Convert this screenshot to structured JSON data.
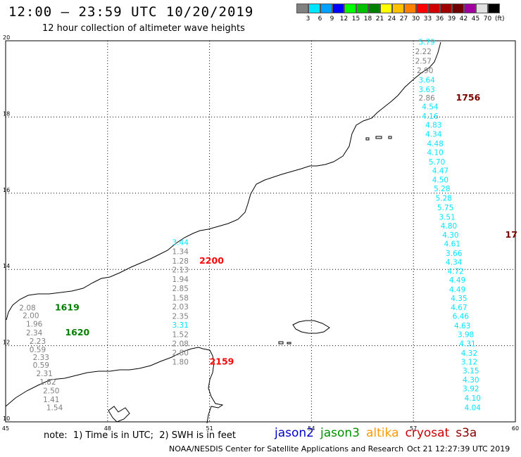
{
  "header": {
    "title": "12:00 – 23:59 UTC 10/20/2019",
    "subtitle": "12 hour collection of altimeter wave heights"
  },
  "legend": {
    "colors": [
      "#808080",
      "#00e5ff",
      "#00a0ff",
      "#0000ff",
      "#00ff00",
      "#00c000",
      "#008000",
      "#ffff00",
      "#ffc000",
      "#ff8000",
      "#ff0000",
      "#d00000",
      "#a00000",
      "#700000",
      "#a000a0",
      "#e0e0e0",
      "#000000"
    ],
    "labels": [
      "3",
      "6",
      "9",
      "12",
      "15",
      "18",
      "21",
      "24",
      "27",
      "30",
      "33",
      "36",
      "39",
      "42",
      "45",
      "70"
    ],
    "unit": "(ft)"
  },
  "axes": {
    "x_ticks": [
      "45",
      "48",
      "51",
      "54",
      "57",
      "60"
    ],
    "y_ticks": [
      "20",
      "18",
      "16",
      "14",
      "12",
      "10"
    ]
  },
  "tracks": [
    {
      "pass": "1756",
      "color": "#00e5ff",
      "label_color": "#7a0000",
      "points": [
        {
          "lon": 57.15,
          "lat": 19.9,
          "v": "5.79",
          "c": "#00e5ff"
        },
        {
          "lon": 57.05,
          "lat": 19.65,
          "v": "2.22",
          "c": "#808080"
        },
        {
          "lon": 57.05,
          "lat": 19.4,
          "v": "2.57",
          "c": "#808080"
        },
        {
          "lon": 57.1,
          "lat": 19.15,
          "v": "2.90",
          "c": "#808080"
        },
        {
          "lon": 57.15,
          "lat": 18.9,
          "v": "3.64",
          "c": "#00e5ff"
        },
        {
          "lon": 57.15,
          "lat": 18.65,
          "v": "3.63",
          "c": "#00e5ff"
        },
        {
          "lon": 57.15,
          "lat": 18.43,
          "v": "2.86",
          "c": "#808080"
        },
        {
          "lon": 57.25,
          "lat": 18.2,
          "v": "4.54",
          "c": "#00e5ff"
        },
        {
          "lon": 57.25,
          "lat": 17.95,
          "v": "4.16",
          "c": "#00e5ff"
        },
        {
          "lon": 57.35,
          "lat": 17.72,
          "v": "4.83",
          "c": "#00e5ff"
        },
        {
          "lon": 57.35,
          "lat": 17.48,
          "v": "4.34",
          "c": "#00e5ff"
        },
        {
          "lon": 57.4,
          "lat": 17.23,
          "v": "4.48",
          "c": "#00e5ff"
        },
        {
          "lon": 57.4,
          "lat": 17.0,
          "v": "4.10",
          "c": "#00e5ff"
        },
        {
          "lon": 57.45,
          "lat": 16.75,
          "v": "5.70",
          "c": "#00e5ff"
        },
        {
          "lon": 57.55,
          "lat": 16.52,
          "v": "4.47",
          "c": "#00e5ff"
        },
        {
          "lon": 57.55,
          "lat": 16.28,
          "v": "4.50",
          "c": "#00e5ff"
        },
        {
          "lon": 57.6,
          "lat": 16.05,
          "v": "5.28",
          "c": "#00e5ff"
        },
        {
          "lon": 57.65,
          "lat": 15.8,
          "v": "5.28",
          "c": "#00e5ff"
        },
        {
          "lon": 57.7,
          "lat": 15.55,
          "v": "5.75",
          "c": "#00e5ff"
        },
        {
          "lon": 57.75,
          "lat": 15.3,
          "v": "3.51",
          "c": "#00e5ff"
        },
        {
          "lon": 57.8,
          "lat": 15.07,
          "v": "4.80",
          "c": "#00e5ff"
        },
        {
          "lon": 57.85,
          "lat": 14.83,
          "v": "4.30",
          "c": "#00e5ff"
        },
        {
          "lon": 57.9,
          "lat": 14.6,
          "v": "4.61",
          "c": "#00e5ff"
        },
        {
          "lon": 57.95,
          "lat": 14.35,
          "v": "3.66",
          "c": "#00e5ff"
        },
        {
          "lon": 57.95,
          "lat": 14.12,
          "v": "4.34",
          "c": "#00e5ff"
        },
        {
          "lon": 58.0,
          "lat": 13.88,
          "v": "4.72",
          "c": "#00e5ff"
        },
        {
          "lon": 58.05,
          "lat": 13.65,
          "v": "4.49",
          "c": "#00e5ff"
        },
        {
          "lon": 58.05,
          "lat": 13.4,
          "v": "4.49",
          "c": "#00e5ff"
        },
        {
          "lon": 58.1,
          "lat": 13.17,
          "v": "4.35",
          "c": "#00e5ff"
        },
        {
          "lon": 58.1,
          "lat": 12.93,
          "v": "4.67",
          "c": "#00e5ff"
        },
        {
          "lon": 58.15,
          "lat": 12.7,
          "v": "6.46",
          "c": "#00e5ff"
        },
        {
          "lon": 58.2,
          "lat": 12.45,
          "v": "4.63",
          "c": "#00e5ff"
        },
        {
          "lon": 58.3,
          "lat": 12.22,
          "v": "3.98",
          "c": "#00e5ff"
        },
        {
          "lon": 58.35,
          "lat": 11.98,
          "v": "4.31",
          "c": "#00e5ff"
        },
        {
          "lon": 58.4,
          "lat": 11.73,
          "v": "4.32",
          "c": "#00e5ff"
        },
        {
          "lon": 58.4,
          "lat": 11.5,
          "v": "3.12",
          "c": "#00e5ff"
        },
        {
          "lon": 58.45,
          "lat": 11.27,
          "v": "3.15",
          "c": "#00e5ff"
        },
        {
          "lon": 58.45,
          "lat": 11.03,
          "v": "4.30",
          "c": "#00e5ff"
        },
        {
          "lon": 58.45,
          "lat": 10.8,
          "v": "3.92",
          "c": "#00e5ff"
        },
        {
          "lon": 58.5,
          "lat": 10.55,
          "v": "4.10",
          "c": "#00e5ff"
        },
        {
          "lon": 58.5,
          "lat": 10.3,
          "v": "4.04",
          "c": "#00e5ff"
        }
      ],
      "labels": [
        {
          "text": "1756",
          "lon": 58.25,
          "lat": 18.43,
          "color": "#7a0000"
        },
        {
          "text": "17",
          "lon": 59.7,
          "lat": 14.83,
          "color": "#7a0000"
        }
      ]
    },
    {
      "pass": "2200",
      "points": [
        {
          "lon": 49.9,
          "lat": 14.64,
          "v": "3.44",
          "c": "#00e5ff"
        },
        {
          "lon": 49.9,
          "lat": 14.4,
          "v": "1.34",
          "c": "#808080"
        },
        {
          "lon": 49.9,
          "lat": 14.15,
          "v": "1.28",
          "c": "#808080"
        },
        {
          "lon": 49.9,
          "lat": 13.92,
          "v": "2.13",
          "c": "#808080"
        },
        {
          "lon": 49.9,
          "lat": 13.67,
          "v": "1.94",
          "c": "#808080"
        },
        {
          "lon": 49.9,
          "lat": 13.43,
          "v": "2.85",
          "c": "#808080"
        },
        {
          "lon": 49.9,
          "lat": 13.18,
          "v": "1.58",
          "c": "#808080"
        },
        {
          "lon": 49.9,
          "lat": 12.95,
          "v": "2.03",
          "c": "#808080"
        },
        {
          "lon": 49.9,
          "lat": 12.7,
          "v": "2.35",
          "c": "#808080"
        },
        {
          "lon": 49.9,
          "lat": 12.47,
          "v": "3.31",
          "c": "#00e5ff"
        },
        {
          "lon": 49.9,
          "lat": 12.22,
          "v": "1.52",
          "c": "#808080"
        },
        {
          "lon": 49.9,
          "lat": 11.98,
          "v": "2.08",
          "c": "#808080"
        },
        {
          "lon": 49.9,
          "lat": 11.74,
          "v": "2.80",
          "c": "#808080"
        },
        {
          "lon": 49.9,
          "lat": 11.5,
          "v": "1.80",
          "c": "#808080"
        }
      ],
      "labels": [
        {
          "text": "2200",
          "lon": 50.7,
          "lat": 14.15,
          "color": "#ff0000"
        },
        {
          "text": "2159",
          "lon": 51.0,
          "lat": 11.5,
          "color": "#ff0000"
        }
      ]
    },
    {
      "pass": "1619",
      "points": [
        {
          "lon": 45.4,
          "lat": 12.92,
          "v": "2.08",
          "c": "#808080"
        },
        {
          "lon": 45.5,
          "lat": 12.72,
          "v": "2.00",
          "c": "#808080"
        },
        {
          "lon": 45.6,
          "lat": 12.5,
          "v": "1.96",
          "c": "#808080"
        },
        {
          "lon": 45.6,
          "lat": 12.27,
          "v": "2.34",
          "c": "#808080"
        },
        {
          "lon": 45.7,
          "lat": 12.05,
          "v": "2.23",
          "c": "#808080"
        },
        {
          "lon": 45.7,
          "lat": 11.83,
          "v": "0.59",
          "c": "#808080"
        },
        {
          "lon": 45.8,
          "lat": 11.62,
          "v": "2.33",
          "c": "#808080"
        },
        {
          "lon": 45.8,
          "lat": 11.42,
          "v": "0.59",
          "c": "#808080"
        },
        {
          "lon": 45.9,
          "lat": 11.2,
          "v": "2.31",
          "c": "#808080"
        },
        {
          "lon": 46.0,
          "lat": 10.98,
          "v": "1.82",
          "c": "#808080"
        },
        {
          "lon": 46.1,
          "lat": 10.75,
          "v": "2.50",
          "c": "#808080"
        },
        {
          "lon": 46.1,
          "lat": 10.52,
          "v": "1.41",
          "c": "#808080"
        },
        {
          "lon": 46.2,
          "lat": 10.3,
          "v": "1.54",
          "c": "#808080"
        }
      ],
      "labels": [
        {
          "text": "1619",
          "lon": 46.45,
          "lat": 12.92,
          "color": "#008000"
        },
        {
          "text": "1620",
          "lon": 46.75,
          "lat": 12.27,
          "color": "#008000"
        }
      ]
    }
  ],
  "footer": {
    "note": "note:  1) Time is in UTC;  2) SWH is in feet",
    "satellites": [
      {
        "name": "jason2",
        "color": "#0000cc"
      },
      {
        "name": "jason3",
        "color": "#009000"
      },
      {
        "name": "altika",
        "color": "#ff9900"
      },
      {
        "name": "cryosat",
        "color": "#cc0000"
      },
      {
        "name": "s3a",
        "color": "#880000"
      }
    ],
    "credit": "NOAA/NESDIS Center for Satellite Applications and Research",
    "timestamp": "Oct 21 12:27:39 UTC 2019"
  }
}
